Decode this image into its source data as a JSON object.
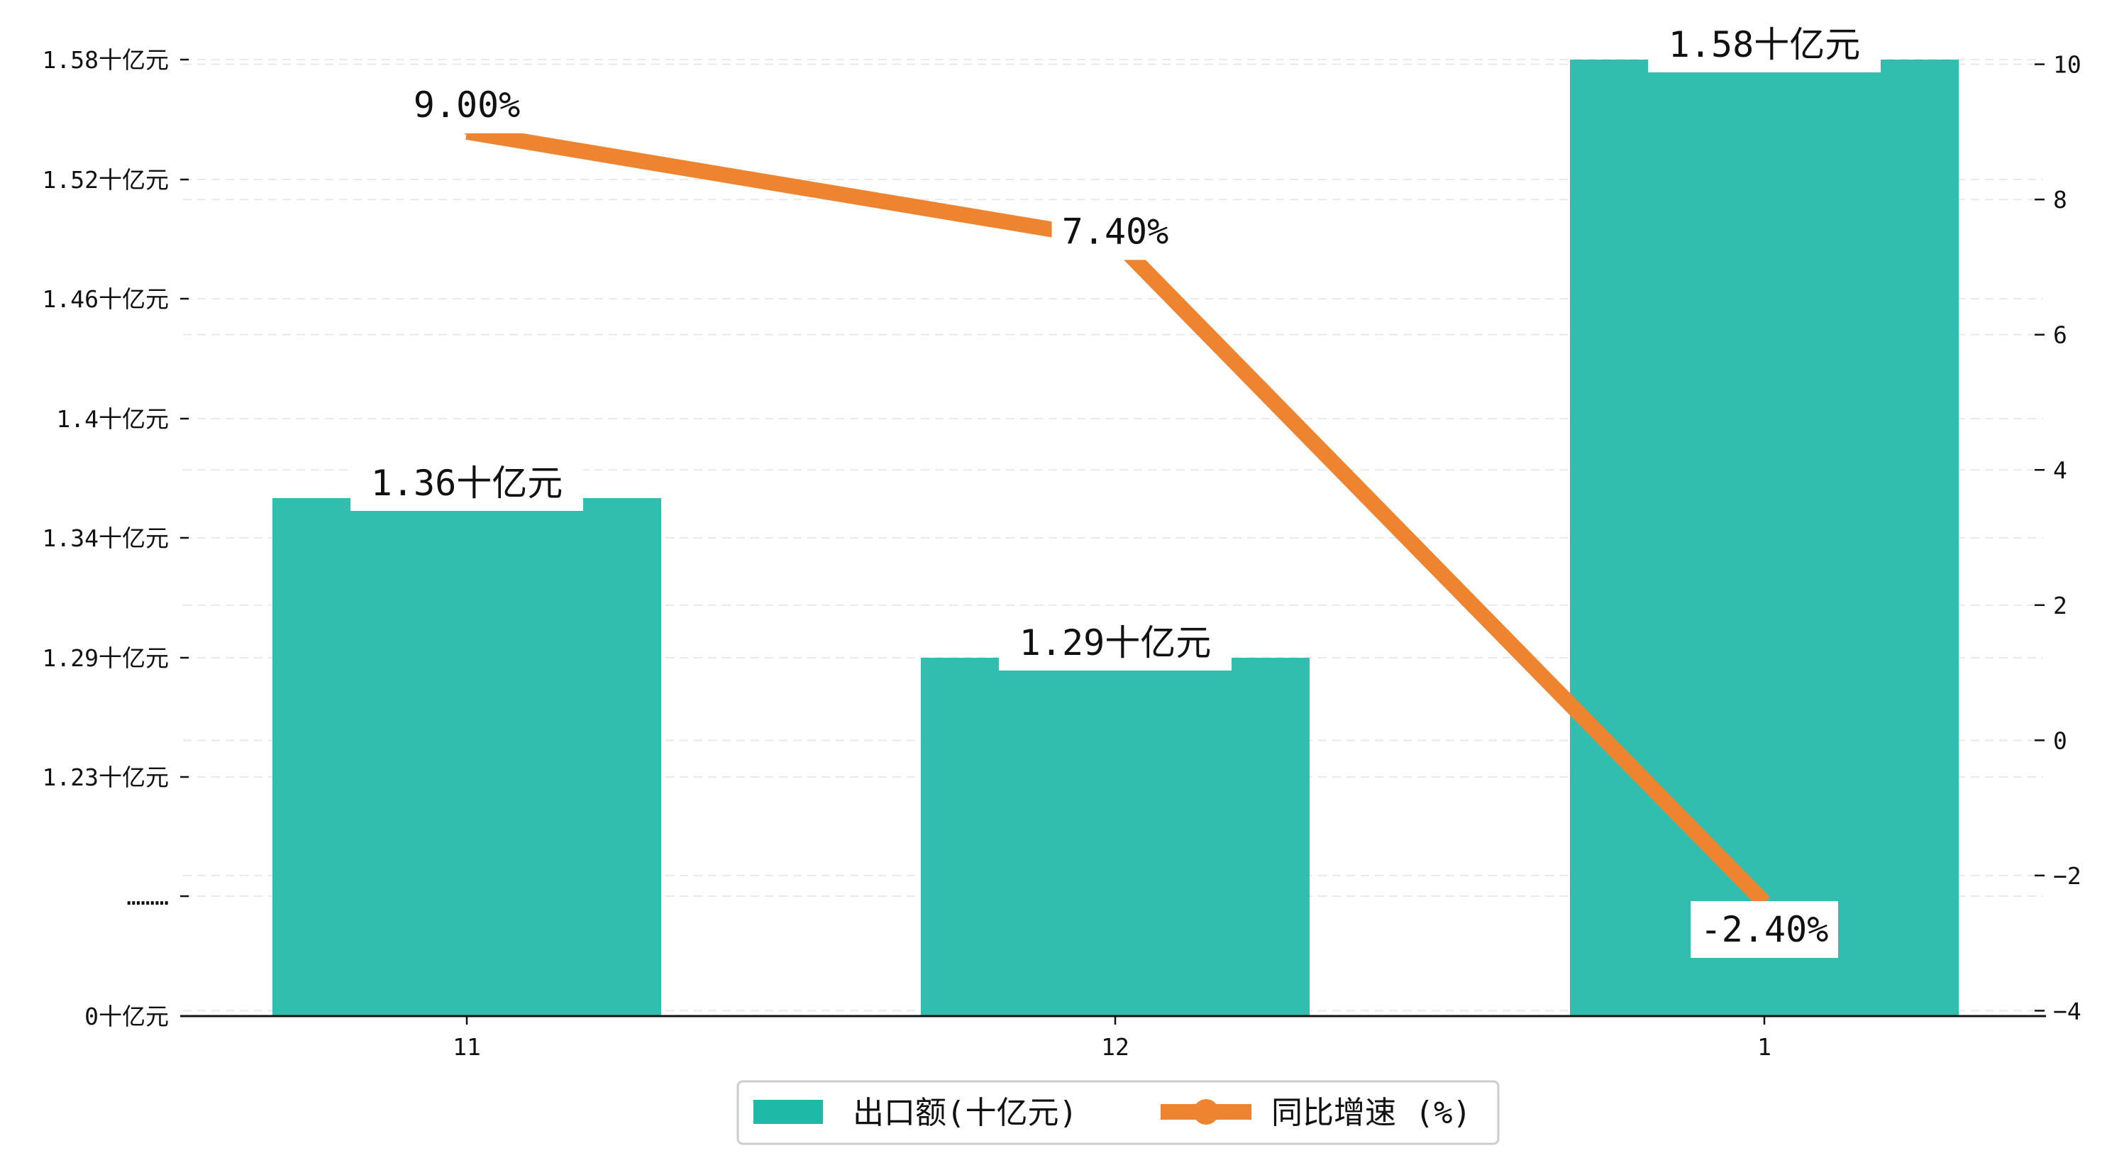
{
  "chart_data": {
    "type": "bar+line",
    "categories": [
      "11",
      "12",
      "1"
    ],
    "series": [
      {
        "name": "出口额(十亿元)",
        "type": "bar",
        "axis": "left",
        "values": [
          1.36,
          1.29,
          1.58
        ],
        "labels": [
          "1.36十亿元",
          "1.29十亿元",
          "1.58十亿元"
        ],
        "color": "#1fb9a7"
      },
      {
        "name": "同比增速 (%)",
        "type": "line",
        "axis": "right",
        "values": [
          9.0,
          7.4,
          -2.4
        ],
        "labels": [
          "9.00%",
          "7.40%",
          "-2.40%"
        ],
        "color": "#ef8430"
      }
    ],
    "left_axis": {
      "type": "broken",
      "ticks": [
        {
          "value": 0,
          "label": "0十亿元"
        },
        {
          "value": null,
          "label": "………"
        },
        {
          "value": 1.23,
          "label": "1.23十亿元"
        },
        {
          "value": 1.29,
          "label": "1.29十亿元"
        },
        {
          "value": 1.34,
          "label": "1.34十亿元"
        },
        {
          "value": 1.4,
          "label": "1.4十亿元"
        },
        {
          "value": 1.46,
          "label": "1.46十亿元"
        },
        {
          "value": 1.52,
          "label": "1.52十亿元"
        },
        {
          "value": 1.58,
          "label": "1.58十亿元"
        }
      ]
    },
    "right_axis": {
      "ylim": [
        -4.3,
        10.3
      ],
      "ticks": [
        -4,
        -2,
        0,
        2,
        4,
        6,
        8,
        10
      ],
      "tick_labels": [
        "−4",
        "−2",
        "0",
        "2",
        "4",
        "6",
        "8",
        "10"
      ]
    },
    "grid": "horizontal dashed",
    "legend": {
      "position": "bottom-center"
    }
  }
}
